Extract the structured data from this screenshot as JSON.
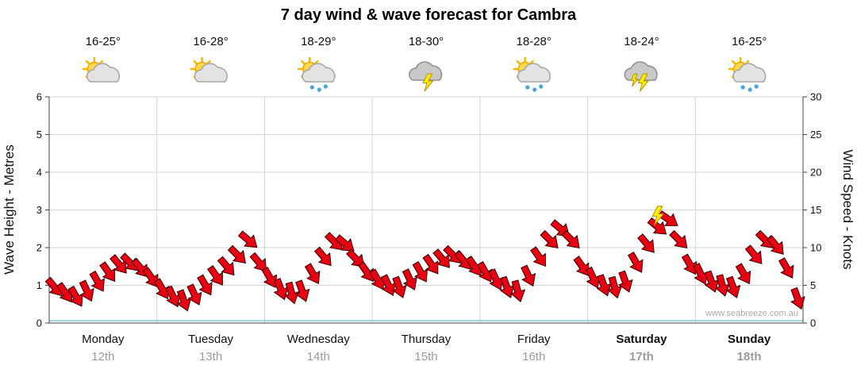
{
  "title": "7 day wind & wave forecast for Cambra",
  "watermark": "www.seabreeze.com.au",
  "days": [
    {
      "name": "Monday",
      "date": "12th",
      "temp": "16-25°",
      "icon": "sun-cloud",
      "bold": false
    },
    {
      "name": "Tuesday",
      "date": "13th",
      "temp": "16-28°",
      "icon": "sun-cloud",
      "bold": false
    },
    {
      "name": "Wednesday",
      "date": "14th",
      "temp": "18-29°",
      "icon": "sun-cloud-rain",
      "bold": false
    },
    {
      "name": "Thursday",
      "date": "15th",
      "temp": "18-30°",
      "icon": "storm",
      "bold": false
    },
    {
      "name": "Friday",
      "date": "16th",
      "temp": "18-28°",
      "icon": "sun-cloud-rain",
      "bold": false
    },
    {
      "name": "Saturday",
      "date": "17th",
      "temp": "18-24°",
      "icon": "storm-2",
      "bold": true
    },
    {
      "name": "Sunday",
      "date": "18th",
      "temp": "16-25°",
      "icon": "sun-cloud-rain",
      "bold": true
    }
  ],
  "chart_data": {
    "type": "line",
    "marker": "arrow",
    "title": "7 day wind & wave forecast for Cambra",
    "ylabel_left": "Wave Height - Metres",
    "ylabel_right": "Wind Speed - Knots",
    "ylim_left": [
      0,
      6
    ],
    "ylim_right": [
      0,
      30
    ],
    "left_ticks": [
      0,
      1,
      2,
      3,
      4,
      5,
      6
    ],
    "right_ticks": [
      0,
      5,
      10,
      15,
      20,
      25,
      30
    ],
    "grid": true,
    "points_per_day": 10,
    "wave_heights": [
      0.95,
      0.8,
      0.7,
      0.85,
      1.1,
      1.35,
      1.55,
      1.6,
      1.45,
      1.2,
      0.9,
      0.7,
      0.6,
      0.75,
      1.0,
      1.25,
      1.5,
      1.8,
      2.2,
      1.6,
      1.2,
      0.9,
      0.8,
      0.85,
      1.3,
      1.75,
      2.15,
      2.1,
      1.7,
      1.35,
      1.15,
      1.0,
      0.95,
      1.15,
      1.35,
      1.55,
      1.7,
      1.8,
      1.65,
      1.5,
      1.35,
      1.15,
      0.95,
      0.85,
      1.25,
      1.75,
      2.2,
      2.5,
      2.2,
      1.5,
      1.2,
      1.0,
      0.95,
      1.1,
      1.6,
      2.1,
      2.55,
      2.75,
      2.2,
      1.55,
      1.3,
      1.1,
      1.0,
      0.95,
      1.3,
      1.8,
      2.2,
      2.05,
      1.45,
      0.65
    ],
    "dirs": [
      50,
      55,
      60,
      65,
      60,
      55,
      50,
      45,
      50,
      55,
      60,
      65,
      70,
      65,
      60,
      55,
      50,
      45,
      40,
      50,
      60,
      70,
      75,
      70,
      60,
      50,
      45,
      40,
      45,
      55,
      60,
      65,
      70,
      65,
      60,
      55,
      50,
      45,
      50,
      55,
      60,
      65,
      70,
      75,
      65,
      55,
      45,
      40,
      45,
      55,
      65,
      70,
      75,
      70,
      60,
      50,
      40,
      35,
      45,
      60,
      65,
      70,
      75,
      70,
      60,
      50,
      45,
      50,
      60,
      70
    ],
    "lightning_index": 56,
    "colors": {
      "arrow": "#e60012",
      "arrow_outline": "#3a0000",
      "lightning": "#ffee00",
      "baseline": "#9fd6e0",
      "grid": "#d4d4d4",
      "axis": "#444444",
      "text": "#111111",
      "date_text": "#9a9a9a",
      "watermark_text": "#aaaaaa",
      "sun": "#ffd84d",
      "rain": "#4aa3e0"
    }
  }
}
